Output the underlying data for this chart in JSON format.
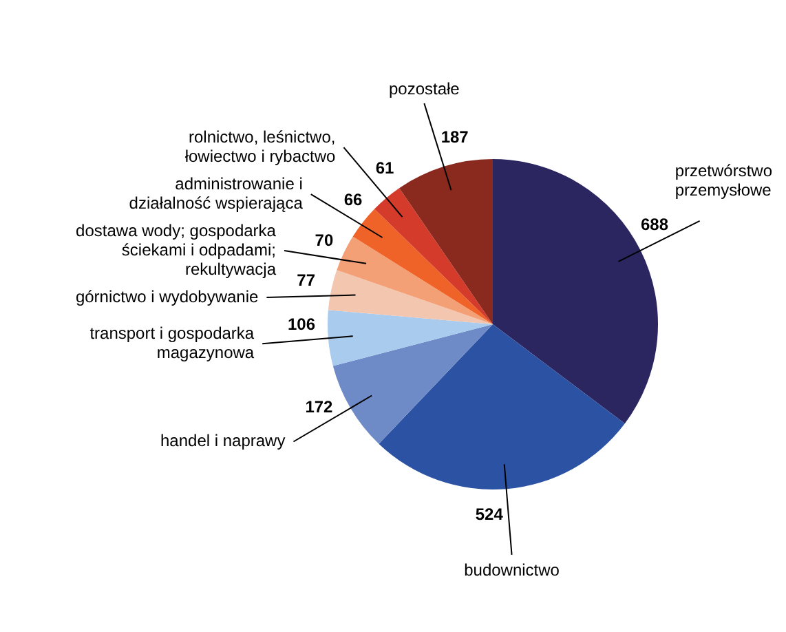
{
  "chart_data": {
    "type": "pie",
    "categories": [
      "przetwórstwo przemysłowe",
      "budownictwo",
      "handel i naprawy",
      "transport i gospodarka magazynowa",
      "górnictwo i wydobywanie",
      "dostawa wody; gospodarka ściekami i odpadami; rekultywacja",
      "administrowanie i działalność wspierająca",
      "rolnictwo, leśnictwo, łowiectwo i rybactwo",
      "pozostałe"
    ],
    "values": [
      688,
      524,
      172,
      106,
      77,
      70,
      66,
      61,
      187
    ],
    "colors": [
      "#2b2660",
      "#2c52a3",
      "#6e8bc8",
      "#a8cbee",
      "#f3c6b0",
      "#f3a077",
      "#ef6329",
      "#d53b2b",
      "#8a2a1f"
    ],
    "data_labels": true,
    "legend": false
  }
}
